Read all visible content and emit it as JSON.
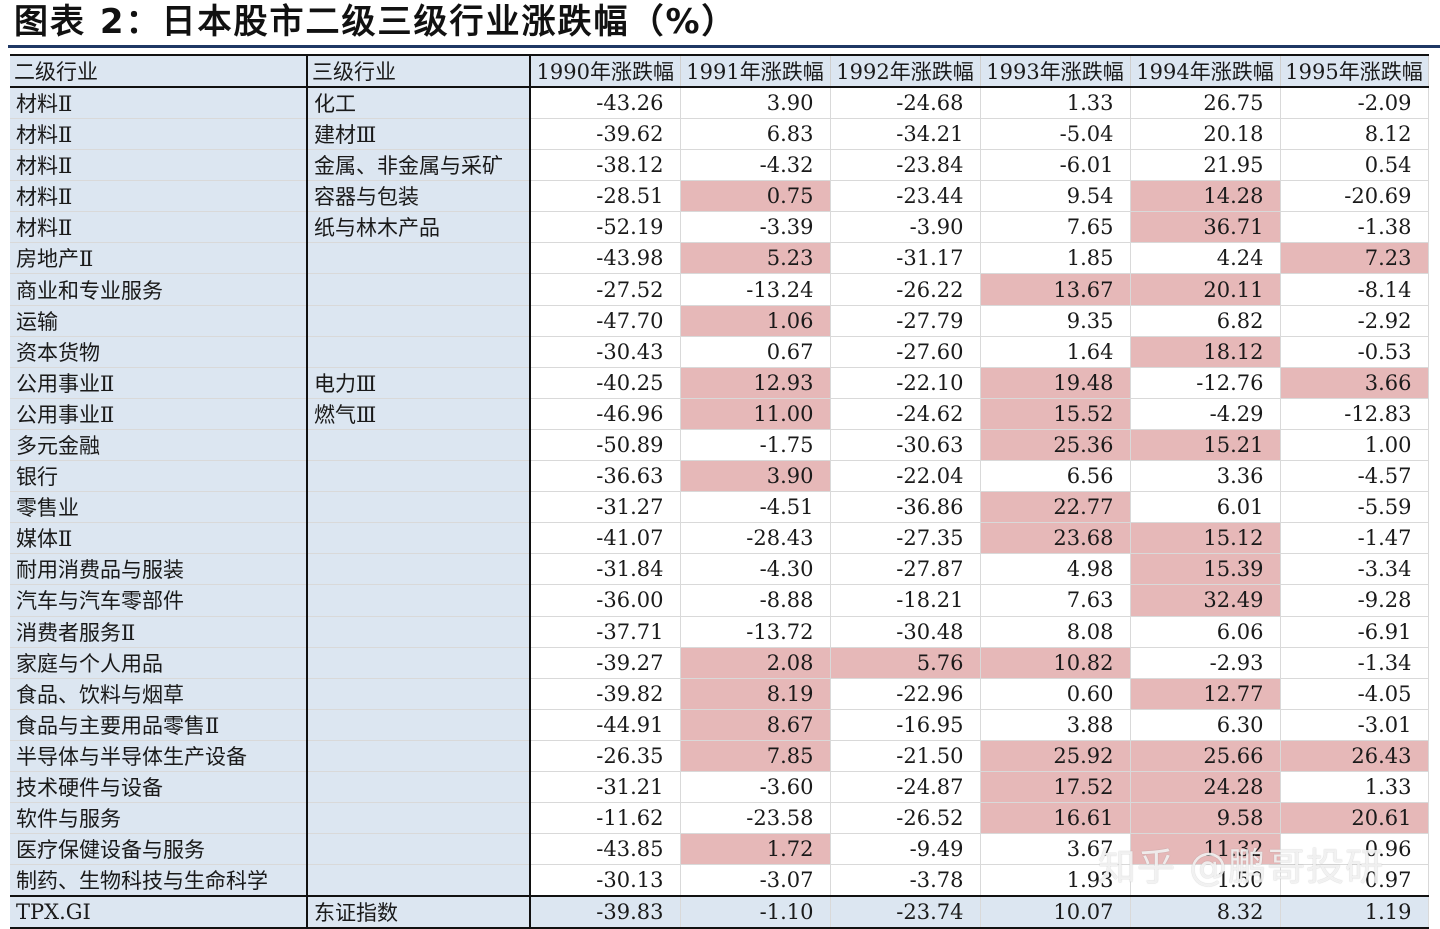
{
  "title": "图表 2：日本股市二级三级行业涨跌幅（%）",
  "colors": {
    "header_bg": "#dce6f1",
    "highlight": "#e6b8b8",
    "rule": "#1f3864"
  },
  "headers": [
    "二级行业",
    "三级行业",
    "1990年涨跌幅",
    "1991年涨跌幅",
    "1992年涨跌幅",
    "1993年涨跌幅",
    "1994年涨跌幅",
    "1995年涨跌幅"
  ],
  "rows": [
    {
      "l2": "材料Ⅱ",
      "l3": "化工",
      "v": [
        "-43.26",
        "3.90",
        "-24.68",
        "1.33",
        "26.75",
        "-2.09"
      ],
      "h": [
        0,
        0,
        0,
        0,
        0,
        0
      ]
    },
    {
      "l2": "材料Ⅱ",
      "l3": "建材Ⅲ",
      "v": [
        "-39.62",
        "6.83",
        "-34.21",
        "-5.04",
        "20.18",
        "8.12"
      ],
      "h": [
        0,
        0,
        0,
        0,
        0,
        0
      ]
    },
    {
      "l2": "材料Ⅱ",
      "l3": "金属、非金属与采矿",
      "v": [
        "-38.12",
        "-4.32",
        "-23.84",
        "-6.01",
        "21.95",
        "0.54"
      ],
      "h": [
        0,
        0,
        0,
        0,
        0,
        0
      ]
    },
    {
      "l2": "材料Ⅱ",
      "l3": "容器与包装",
      "v": [
        "-28.51",
        "0.75",
        "-23.44",
        "9.54",
        "14.28",
        "-20.69"
      ],
      "h": [
        0,
        1,
        0,
        0,
        1,
        0
      ]
    },
    {
      "l2": "材料Ⅱ",
      "l3": "纸与林木产品",
      "v": [
        "-52.19",
        "-3.39",
        "-3.90",
        "7.65",
        "36.71",
        "-1.38"
      ],
      "h": [
        0,
        0,
        0,
        0,
        1,
        0
      ]
    },
    {
      "l2": "房地产Ⅱ",
      "l3": "",
      "v": [
        "-43.98",
        "5.23",
        "-31.17",
        "1.85",
        "4.24",
        "7.23"
      ],
      "h": [
        0,
        1,
        0,
        0,
        0,
        1
      ]
    },
    {
      "l2": "商业和专业服务",
      "l3": "",
      "v": [
        "-27.52",
        "-13.24",
        "-26.22",
        "13.67",
        "20.11",
        "-8.14"
      ],
      "h": [
        0,
        0,
        0,
        1,
        1,
        0
      ]
    },
    {
      "l2": "运输",
      "l3": "",
      "v": [
        "-47.70",
        "1.06",
        "-27.79",
        "9.35",
        "6.82",
        "-2.92"
      ],
      "h": [
        0,
        1,
        0,
        0,
        0,
        0
      ]
    },
    {
      "l2": "资本货物",
      "l3": "",
      "v": [
        "-30.43",
        "0.67",
        "-27.60",
        "1.64",
        "18.12",
        "-0.53"
      ],
      "h": [
        0,
        0,
        0,
        0,
        1,
        0
      ]
    },
    {
      "l2": "公用事业Ⅱ",
      "l3": "电力Ⅲ",
      "v": [
        "-40.25",
        "12.93",
        "-22.10",
        "19.48",
        "-12.76",
        "3.66"
      ],
      "h": [
        0,
        1,
        0,
        1,
        0,
        1
      ]
    },
    {
      "l2": "公用事业Ⅱ",
      "l3": "燃气Ⅲ",
      "v": [
        "-46.96",
        "11.00",
        "-24.62",
        "15.52",
        "-4.29",
        "-12.83"
      ],
      "h": [
        0,
        1,
        0,
        1,
        0,
        0
      ]
    },
    {
      "l2": "多元金融",
      "l3": "",
      "v": [
        "-50.89",
        "-1.75",
        "-30.63",
        "25.36",
        "15.21",
        "1.00"
      ],
      "h": [
        0,
        0,
        0,
        1,
        1,
        0
      ]
    },
    {
      "l2": "银行",
      "l3": "",
      "v": [
        "-36.63",
        "3.90",
        "-22.04",
        "6.56",
        "3.36",
        "-4.57"
      ],
      "h": [
        0,
        1,
        0,
        0,
        0,
        0
      ]
    },
    {
      "l2": "零售业",
      "l3": "",
      "v": [
        "-31.27",
        "-4.51",
        "-36.86",
        "22.77",
        "6.01",
        "-5.59"
      ],
      "h": [
        0,
        0,
        0,
        1,
        0,
        0
      ]
    },
    {
      "l2": "媒体Ⅱ",
      "l3": "",
      "v": [
        "-41.07",
        "-28.43",
        "-27.35",
        "23.68",
        "15.12",
        "-1.47"
      ],
      "h": [
        0,
        0,
        0,
        1,
        1,
        0
      ]
    },
    {
      "l2": "耐用消费品与服装",
      "l3": "",
      "v": [
        "-31.84",
        "-4.30",
        "-27.87",
        "4.98",
        "15.39",
        "-3.34"
      ],
      "h": [
        0,
        0,
        0,
        0,
        1,
        0
      ]
    },
    {
      "l2": "汽车与汽车零部件",
      "l3": "",
      "v": [
        "-36.00",
        "-8.88",
        "-18.21",
        "7.63",
        "32.49",
        "-9.28"
      ],
      "h": [
        0,
        0,
        0,
        0,
        1,
        0
      ]
    },
    {
      "l2": "消费者服务Ⅱ",
      "l3": "",
      "v": [
        "-37.71",
        "-13.72",
        "-30.48",
        "8.08",
        "6.06",
        "-6.91"
      ],
      "h": [
        0,
        0,
        0,
        0,
        0,
        0
      ]
    },
    {
      "l2": "家庭与个人用品",
      "l3": "",
      "v": [
        "-39.27",
        "2.08",
        "5.76",
        "10.82",
        "-2.93",
        "-1.34"
      ],
      "h": [
        0,
        1,
        1,
        1,
        0,
        0
      ]
    },
    {
      "l2": "食品、饮料与烟草",
      "l3": "",
      "v": [
        "-39.82",
        "8.19",
        "-22.96",
        "0.60",
        "12.77",
        "-4.05"
      ],
      "h": [
        0,
        1,
        0,
        0,
        1,
        0
      ]
    },
    {
      "l2": "食品与主要用品零售Ⅱ",
      "l3": "",
      "v": [
        "-44.91",
        "8.67",
        "-16.95",
        "3.88",
        "6.30",
        "-3.01"
      ],
      "h": [
        0,
        1,
        0,
        0,
        0,
        0
      ]
    },
    {
      "l2": "半导体与半导体生产设备",
      "l3": "",
      "v": [
        "-26.35",
        "7.85",
        "-21.50",
        "25.92",
        "25.66",
        "26.43"
      ],
      "h": [
        0,
        1,
        0,
        1,
        1,
        1
      ]
    },
    {
      "l2": "技术硬件与设备",
      "l3": "",
      "v": [
        "-31.21",
        "-3.60",
        "-24.87",
        "17.52",
        "24.28",
        "1.33"
      ],
      "h": [
        0,
        0,
        0,
        1,
        1,
        0
      ]
    },
    {
      "l2": "软件与服务",
      "l3": "",
      "v": [
        "-11.62",
        "-23.58",
        "-26.52",
        "16.61",
        "9.58",
        "20.61"
      ],
      "h": [
        0,
        0,
        0,
        1,
        1,
        1
      ]
    },
    {
      "l2": "医疗保健设备与服务",
      "l3": "",
      "v": [
        "-43.85",
        "1.72",
        "-9.49",
        "3.67",
        "11.32",
        "0.96"
      ],
      "h": [
        0,
        1,
        0,
        0,
        1,
        0
      ]
    },
    {
      "l2": "制药、生物科技与生命科学",
      "l3": "",
      "v": [
        "-30.13",
        "-3.07",
        "-3.78",
        "1.93",
        "1.50",
        "0.97"
      ],
      "h": [
        0,
        0,
        0,
        0,
        0,
        0
      ]
    }
  ],
  "total": {
    "l2": "TPX.GI",
    "l3": "东证指数",
    "v": [
      "-39.83",
      "-1.10",
      "-23.74",
      "10.07",
      "8.32",
      "1.19"
    ]
  },
  "watermark": "知乎 @鹏哥投研"
}
